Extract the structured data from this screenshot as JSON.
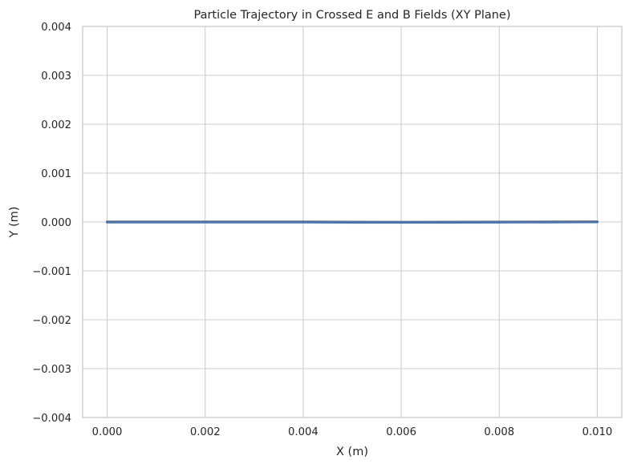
{
  "chart_data": {
    "type": "line",
    "title": "Particle Trajectory in Crossed E and B Fields (XY Plane)",
    "xlabel": "X (m)",
    "ylabel": "Y (m)",
    "xlim": [
      -0.0005,
      0.0105
    ],
    "ylim": [
      -0.004,
      0.004
    ],
    "xticks": [
      0.0,
      0.002,
      0.004,
      0.006,
      0.008,
      0.01
    ],
    "xtick_labels": [
      "0.000",
      "0.002",
      "0.004",
      "0.006",
      "0.008",
      "0.010"
    ],
    "yticks": [
      -0.004,
      -0.003,
      -0.002,
      -0.001,
      0.0,
      0.001,
      0.002,
      0.003,
      0.004
    ],
    "ytick_labels": [
      "−0.004",
      "−0.003",
      "−0.002",
      "−0.001",
      "0.000",
      "0.001",
      "0.002",
      "0.003",
      "0.004"
    ],
    "grid": true,
    "series": [
      {
        "color": "#4c72b0",
        "x": [
          0.0,
          0.001,
          0.002,
          0.003,
          0.004,
          0.005,
          0.006,
          0.007,
          0.008,
          0.009,
          0.01
        ],
        "y": [
          0.0,
          0.0,
          0.0,
          0.0,
          0.0,
          -4e-06,
          -5e-06,
          -4e-06,
          -2e-06,
          0.0,
          3e-06
        ]
      }
    ]
  }
}
